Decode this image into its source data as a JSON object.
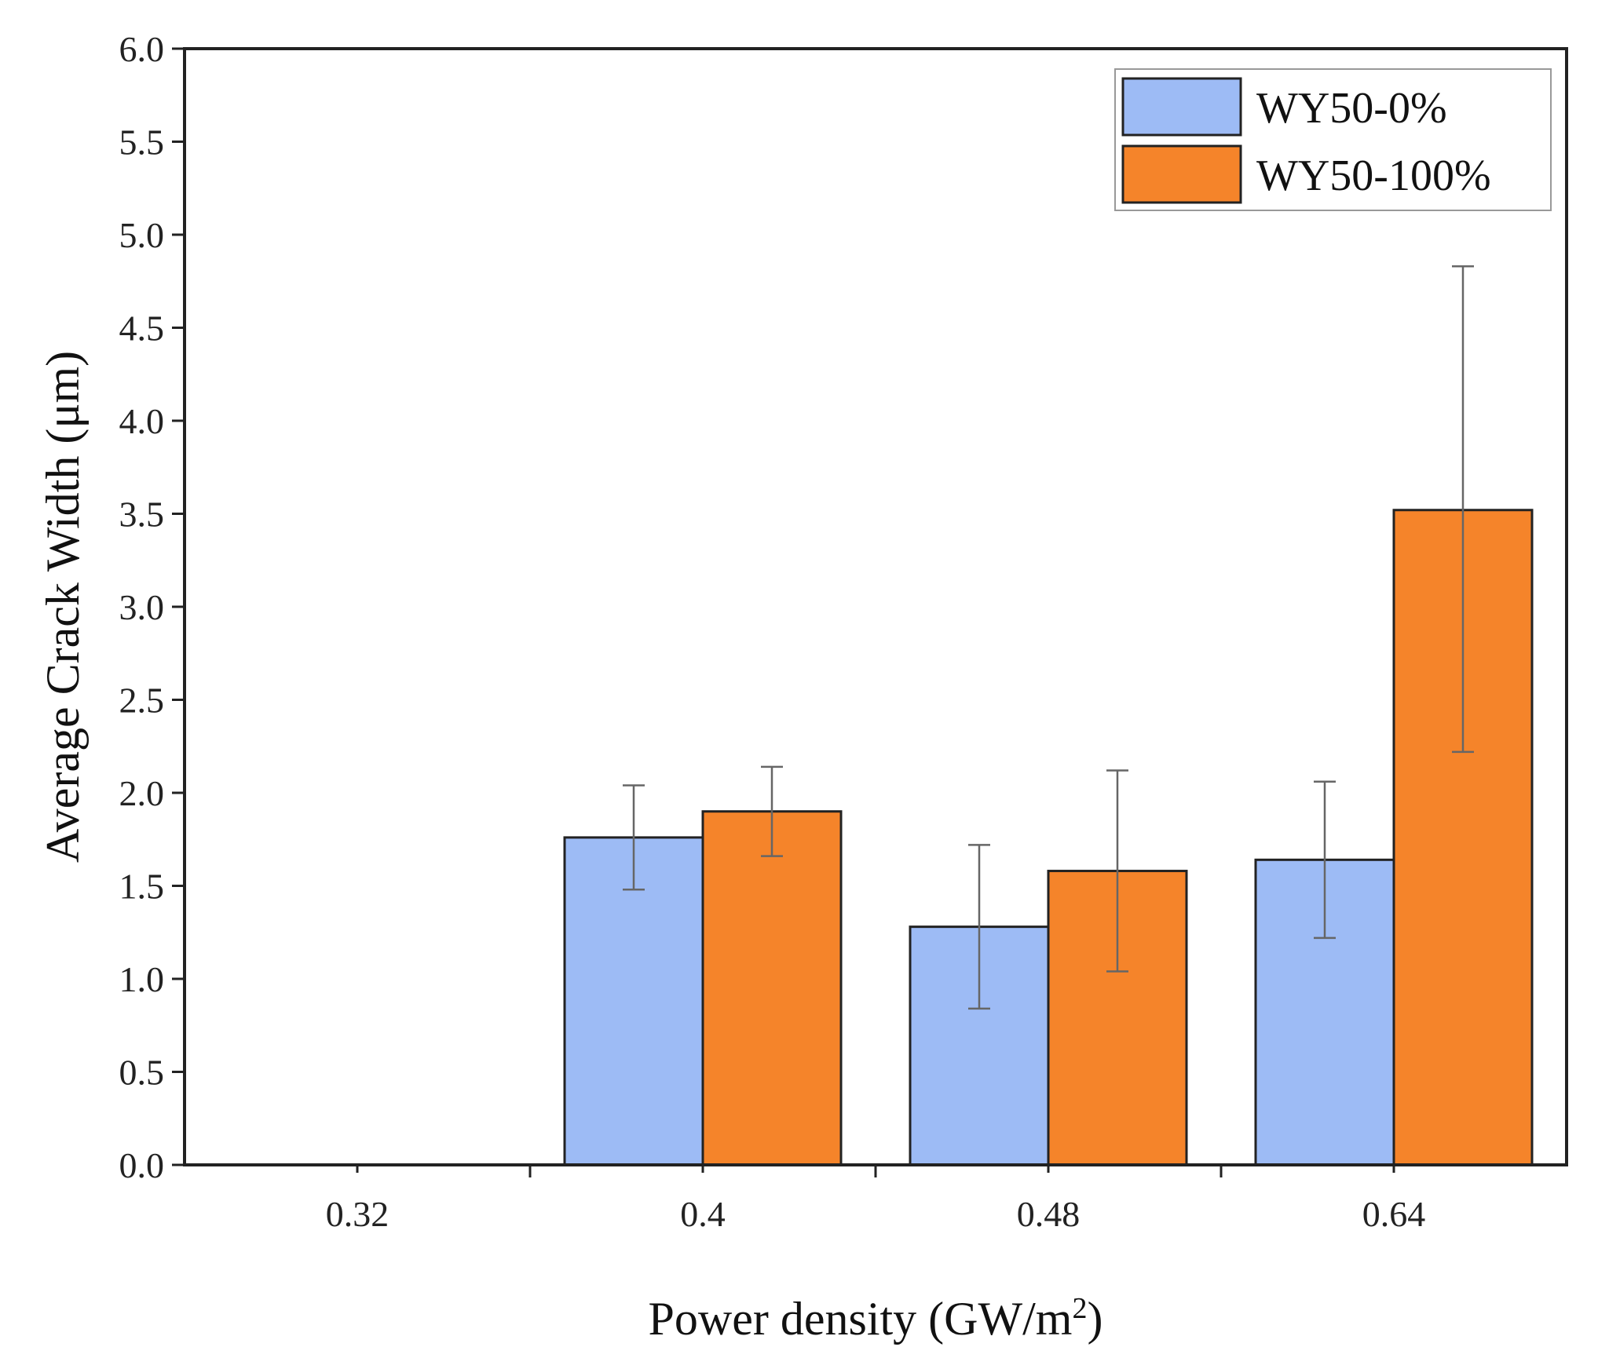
{
  "chart_data": {
    "type": "bar",
    "title": "",
    "xlabel": "Power density (GW/m",
    "xlabel_superscript": "2",
    "xlabel_suffix": ")",
    "ylabel": "Average Crack Width (μm)",
    "categories": [
      "0.32",
      "0.4",
      "0.48",
      "0.64"
    ],
    "series": [
      {
        "name": "WY50-0%",
        "color": "#9dbbf5",
        "values": [
          null,
          1.76,
          1.28,
          1.64
        ],
        "err_low": [
          null,
          1.48,
          0.84,
          1.22
        ],
        "err_high": [
          null,
          2.04,
          1.72,
          2.06
        ]
      },
      {
        "name": "WY50-100%",
        "color": "#f5842a",
        "values": [
          null,
          1.9,
          1.58,
          3.52
        ],
        "err_low": [
          null,
          1.66,
          1.04,
          2.22
        ],
        "err_high": [
          null,
          2.14,
          2.12,
          4.83
        ]
      }
    ],
    "ylim": [
      0,
      6.0
    ],
    "yticks": [
      "0.0",
      "0.5",
      "1.0",
      "1.5",
      "2.0",
      "2.5",
      "3.0",
      "3.5",
      "4.0",
      "4.5",
      "5.0",
      "5.5",
      "6.0"
    ],
    "grid": false,
    "legend": "top-right"
  }
}
